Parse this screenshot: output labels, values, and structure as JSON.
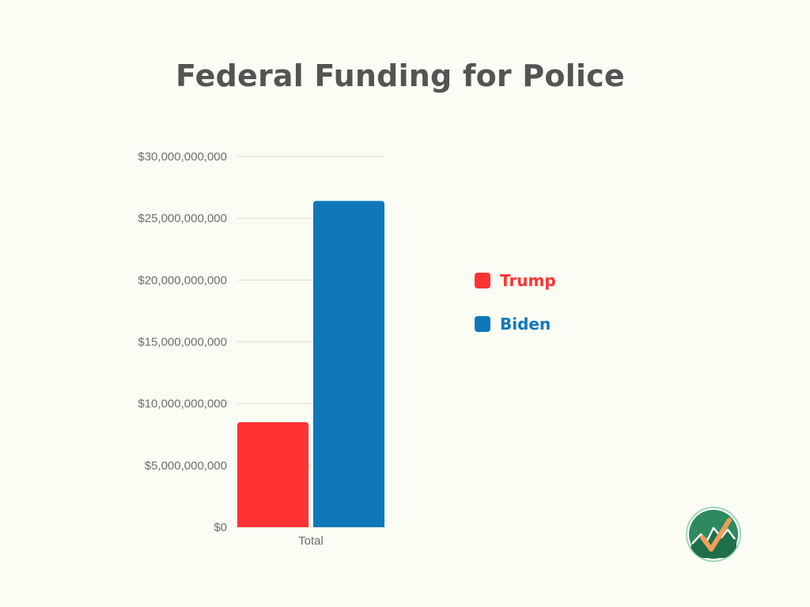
{
  "chart_data": {
    "type": "bar",
    "title": "Federal Funding for Police",
    "categories": [
      "Total"
    ],
    "series": [
      {
        "name": "Trump",
        "values": [
          8500000000
        ],
        "color": "#ff3333"
      },
      {
        "name": "Biden",
        "values": [
          26400000000
        ],
        "color": "#0e78bb"
      }
    ],
    "ylim": [
      0,
      30000000000
    ],
    "yticks": [
      0,
      5000000000,
      10000000000,
      15000000000,
      20000000000,
      25000000000,
      30000000000
    ],
    "ytick_labels": [
      "$0",
      "$5,000,000,000",
      "$10,000,000,000",
      "$15,000,000,000",
      "$20,000,000,000",
      "$25,000,000,000",
      "$30,000,000,000"
    ],
    "xlabel": "",
    "ylabel": "",
    "grid": true,
    "legend_position": "right"
  },
  "logo": {
    "icon": "checkmark-mountain-logo-icon",
    "colors": {
      "circle": "#2d8a5f",
      "check": "#f29d5a",
      "mountain": "#1f6e4a"
    }
  }
}
